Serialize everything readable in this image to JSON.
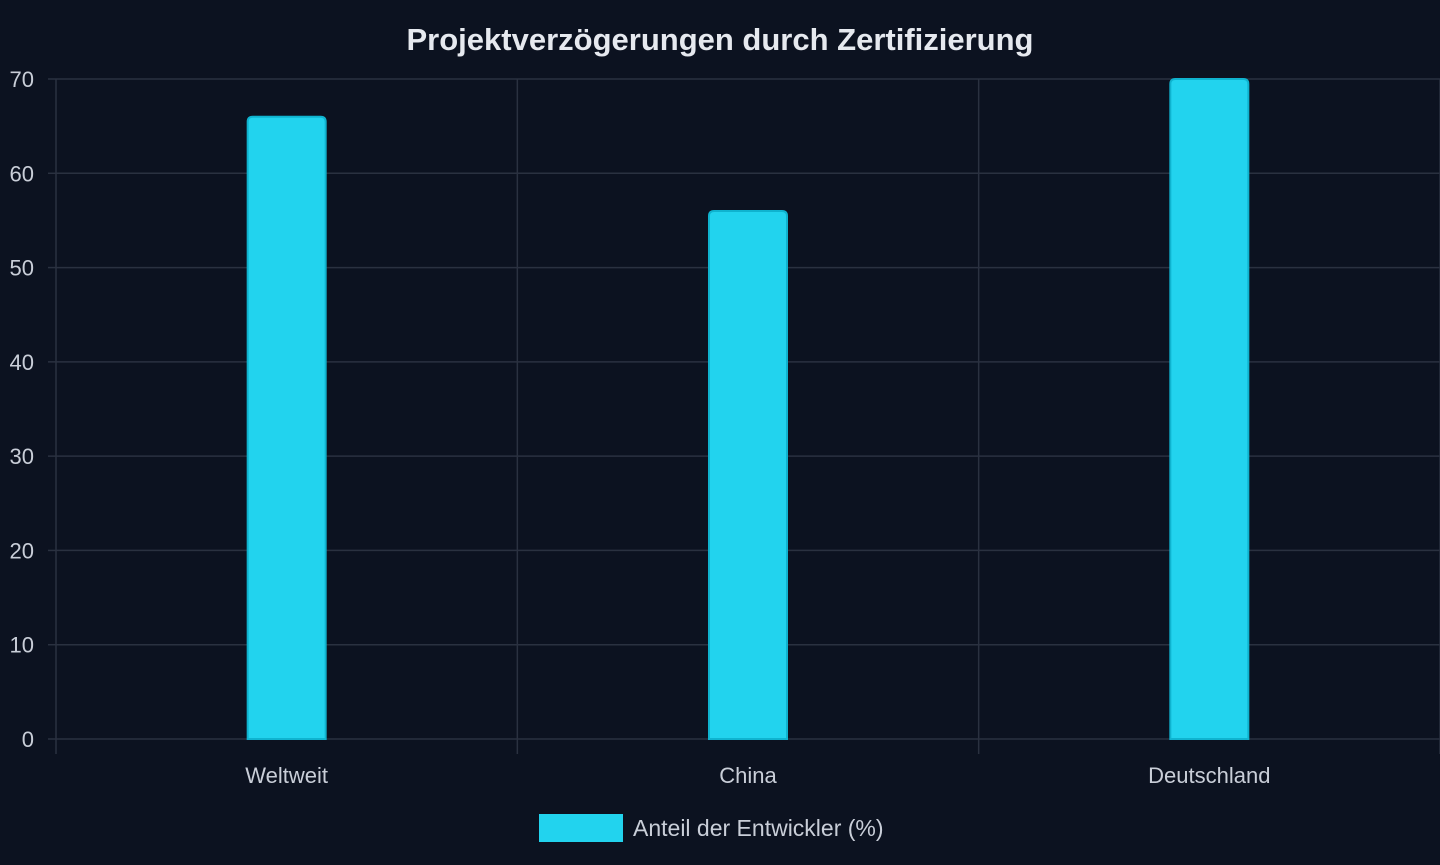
{
  "colors": {
    "background": "#0c1220",
    "grid": "#2a3140",
    "text": "#c9ced8",
    "title": "#e6e9ef",
    "bar_fill": "#22d3ee",
    "bar_stroke": "#0fb3cf"
  },
  "chart_data": {
    "type": "bar",
    "title": "Projektverzögerungen durch Zertifizierung",
    "xlabel": "",
    "ylabel": "",
    "categories": [
      "Weltweit",
      "China",
      "Deutschland"
    ],
    "series": [
      {
        "name": "Anteil der Entwickler (%)",
        "values": [
          66,
          56,
          70
        ]
      }
    ],
    "ylim": [
      0,
      70
    ],
    "yticks": [
      0,
      10,
      20,
      30,
      40,
      50,
      60,
      70
    ],
    "grid": true,
    "legend": "bottom-center"
  }
}
